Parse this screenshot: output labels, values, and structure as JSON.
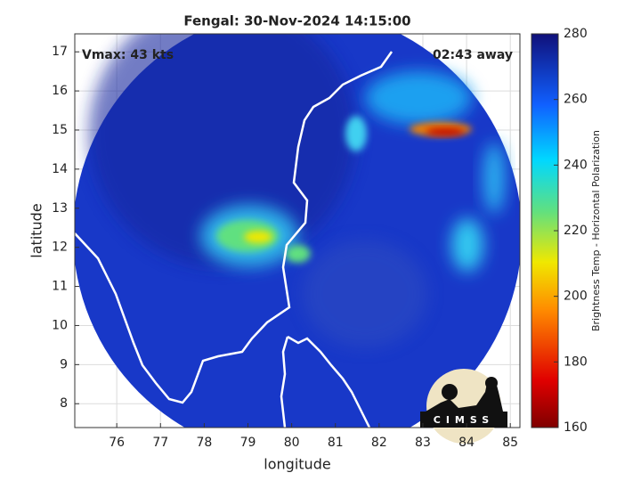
{
  "chart_data": {
    "type": "map",
    "title": "Fengal: 30-Nov-2024 14:15:00",
    "annotations": [
      "Vmax: 43 kts",
      "02:43 away"
    ],
    "x_label": "longitude",
    "y_label": "latitude",
    "xlim": [
      75.04,
      85.22
    ],
    "xticks": [
      76,
      77,
      78,
      79,
      80,
      81,
      82,
      83,
      84,
      85
    ],
    "ylim": [
      7.39,
      17.46
    ],
    "yticks": [
      8,
      9,
      10,
      11,
      12,
      13,
      14,
      15,
      16,
      17
    ],
    "grid": true,
    "colorbar": {
      "label": "Brightness Temp - Horizontal Polarization",
      "lim": [
        160,
        280
      ],
      "ticks": [
        160,
        180,
        200,
        220,
        240,
        260,
        280
      ]
    },
    "logo": "CIMSS"
  }
}
